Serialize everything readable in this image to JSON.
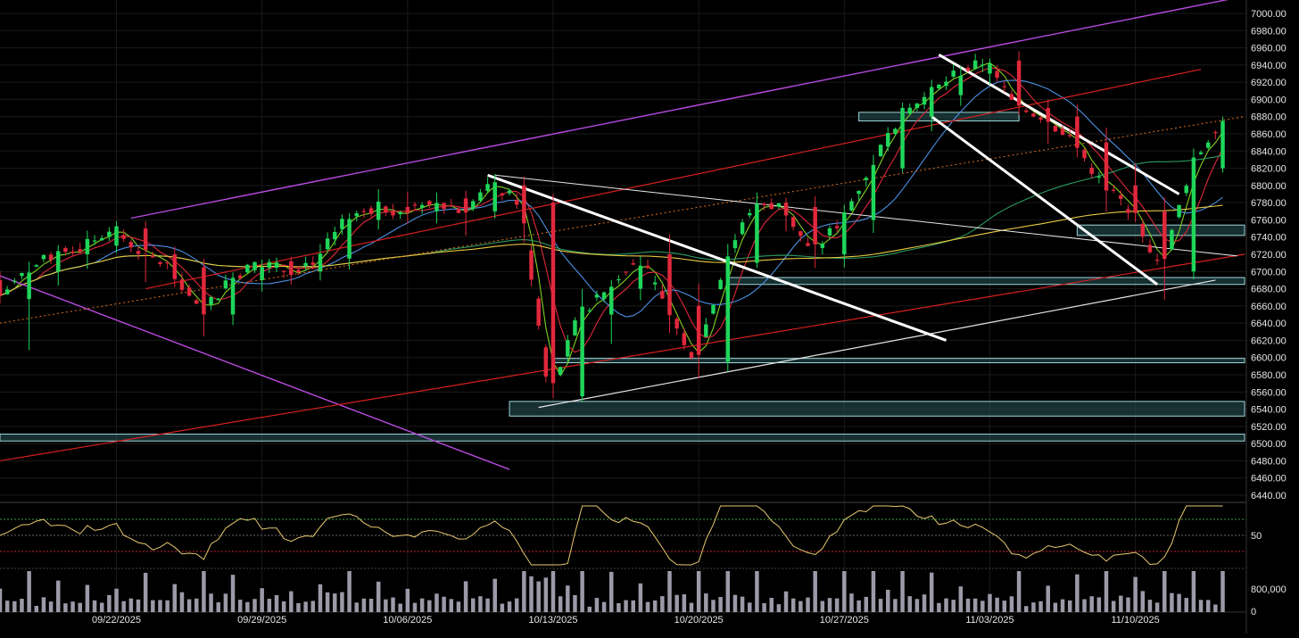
{
  "chart_data": {
    "type": "candlestick",
    "title": "",
    "price_axis": {
      "min": 6440,
      "max": 7000,
      "step": 20,
      "tick_labels": [
        "7000.00",
        "6980.00",
        "6960.00",
        "6940.00",
        "6920.00",
        "6900.00",
        "6880.00",
        "6860.00",
        "6840.00",
        "6820.00",
        "6800.00",
        "6780.00",
        "6760.00",
        "6740.00",
        "6720.00",
        "6700.00",
        "6680.00",
        "6660.00",
        "6640.00",
        "6620.00",
        "6600.00",
        "6580.00",
        "6560.00",
        "6540.00",
        "6520.00",
        "6500.00",
        "6480.00",
        "6460.00",
        "6440.00"
      ]
    },
    "date_labels": [
      {
        "label": "09/22/2025",
        "t": 16
      },
      {
        "label": "09/29/2025",
        "t": 36
      },
      {
        "label": "10/06/2025",
        "t": 56
      },
      {
        "label": "10/13/2025",
        "t": 76
      },
      {
        "label": "10/20/2025",
        "t": 96
      },
      {
        "label": "10/27/2025",
        "t": 116
      },
      {
        "label": "11/03/2025",
        "t": 136
      },
      {
        "label": "11/10/2025",
        "t": 156
      }
    ],
    "candles_daily_approx": [
      {
        "t": 0,
        "o": 6690,
        "h": 6700,
        "l": 6660,
        "c": 6668
      },
      {
        "t": 4,
        "o": 6668,
        "h": 6712,
        "l": 6610,
        "c": 6700
      },
      {
        "t": 8,
        "o": 6700,
        "h": 6728,
        "l": 6685,
        "c": 6720
      },
      {
        "t": 12,
        "o": 6720,
        "h": 6740,
        "l": 6705,
        "c": 6730
      },
      {
        "t": 16,
        "o": 6730,
        "h": 6756,
        "l": 6725,
        "c": 6750
      },
      {
        "t": 20,
        "o": 6750,
        "h": 6752,
        "l": 6690,
        "c": 6720
      },
      {
        "t": 24,
        "o": 6720,
        "h": 6730,
        "l": 6700,
        "c": 6705
      },
      {
        "t": 28,
        "o": 6705,
        "h": 6712,
        "l": 6630,
        "c": 6650
      },
      {
        "t": 32,
        "o": 6650,
        "h": 6700,
        "l": 6640,
        "c": 6690
      },
      {
        "t": 36,
        "o": 6690,
        "h": 6720,
        "l": 6680,
        "c": 6712
      },
      {
        "t": 40,
        "o": 6712,
        "h": 6720,
        "l": 6690,
        "c": 6700
      },
      {
        "t": 44,
        "o": 6700,
        "h": 6722,
        "l": 6695,
        "c": 6715
      },
      {
        "t": 48,
        "o": 6715,
        "h": 6770,
        "l": 6710,
        "c": 6760
      },
      {
        "t": 52,
        "o": 6760,
        "h": 6790,
        "l": 6750,
        "c": 6775
      },
      {
        "t": 56,
        "o": 6775,
        "h": 6795,
        "l": 6760,
        "c": 6770
      },
      {
        "t": 60,
        "o": 6770,
        "h": 6800,
        "l": 6760,
        "c": 6785
      },
      {
        "t": 64,
        "o": 6785,
        "h": 6790,
        "l": 6750,
        "c": 6770
      },
      {
        "t": 68,
        "o": 6770,
        "h": 6805,
        "l": 6765,
        "c": 6800
      },
      {
        "t": 72,
        "o": 6800,
        "h": 6808,
        "l": 6760,
        "c": 6780
      },
      {
        "t": 76,
        "o": 6780,
        "h": 6790,
        "l": 6542,
        "c": 6555
      },
      {
        "t": 80,
        "o": 6555,
        "h": 6680,
        "l": 6550,
        "c": 6650
      },
      {
        "t": 84,
        "o": 6650,
        "h": 6690,
        "l": 6620,
        "c": 6680
      },
      {
        "t": 88,
        "o": 6680,
        "h": 6735,
        "l": 6670,
        "c": 6720
      },
      {
        "t": 92,
        "o": 6720,
        "h": 6750,
        "l": 6640,
        "c": 6660
      },
      {
        "t": 96,
        "o": 6660,
        "h": 6700,
        "l": 6572,
        "c": 6595
      },
      {
        "t": 100,
        "o": 6595,
        "h": 6730,
        "l": 6590,
        "c": 6710
      },
      {
        "t": 104,
        "o": 6710,
        "h": 6790,
        "l": 6705,
        "c": 6780
      },
      {
        "t": 108,
        "o": 6780,
        "h": 6790,
        "l": 6760,
        "c": 6775
      },
      {
        "t": 112,
        "o": 6775,
        "h": 6785,
        "l": 6700,
        "c": 6720
      },
      {
        "t": 116,
        "o": 6720,
        "h": 6770,
        "l": 6710,
        "c": 6760
      },
      {
        "t": 120,
        "o": 6760,
        "h": 6830,
        "l": 6750,
        "c": 6820
      },
      {
        "t": 124,
        "o": 6820,
        "h": 6890,
        "l": 6815,
        "c": 6880
      },
      {
        "t": 128,
        "o": 6880,
        "h": 6915,
        "l": 6870,
        "c": 6905
      },
      {
        "t": 132,
        "o": 6905,
        "h": 6940,
        "l": 6895,
        "c": 6930
      },
      {
        "t": 136,
        "o": 6930,
        "h": 6952,
        "l": 6920,
        "c": 6945
      },
      {
        "t": 140,
        "o": 6945,
        "h": 6950,
        "l": 6880,
        "c": 6890
      },
      {
        "t": 144,
        "o": 6890,
        "h": 6905,
        "l": 6860,
        "c": 6880
      },
      {
        "t": 148,
        "o": 6880,
        "h": 6895,
        "l": 6840,
        "c": 6850
      },
      {
        "t": 152,
        "o": 6850,
        "h": 6870,
        "l": 6780,
        "c": 6800
      },
      {
        "t": 156,
        "o": 6800,
        "h": 6840,
        "l": 6760,
        "c": 6770
      },
      {
        "t": 160,
        "o": 6770,
        "h": 6790,
        "l": 6658,
        "c": 6700
      },
      {
        "t": 164,
        "o": 6700,
        "h": 6830,
        "l": 6695,
        "c": 6820
      },
      {
        "t": 168,
        "o": 6820,
        "h": 6880,
        "l": 6815,
        "c": 6875
      }
    ],
    "horizontal_zones": [
      {
        "from": 6875,
        "to": 6885,
        "t_start": 118,
        "t_end": 140
      },
      {
        "from": 6742,
        "to": 6754,
        "t_start": 148,
        "t_end": 171
      },
      {
        "from": 6685,
        "to": 6693,
        "t_start": 100,
        "t_end": 171
      },
      {
        "from": 6594,
        "to": 6599,
        "t_start": 76,
        "t_end": 171
      },
      {
        "from": 6532,
        "to": 6549,
        "t_start": 70,
        "t_end": 171
      },
      {
        "from": 6503,
        "to": 6511,
        "t_start": 0,
        "t_end": 171
      }
    ],
    "rsi_panel": {
      "reference_label": "50"
    },
    "volume_panel": {
      "tick_labels": [
        "800,000",
        "0"
      ]
    },
    "grid": true
  }
}
